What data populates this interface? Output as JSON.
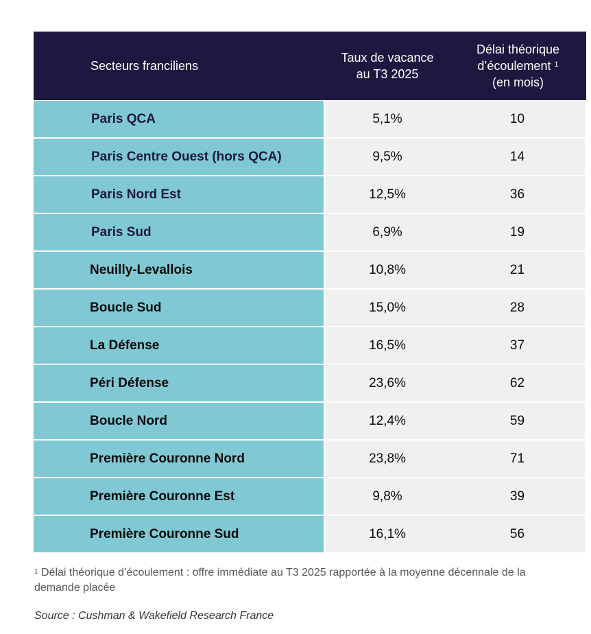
{
  "header": {
    "col1": "Secteurs franciliens",
    "col2_line1": "Taux de vacance",
    "col2_line2": "au T3 2025",
    "col3_line1": "Délai théorique",
    "col3_line2": "d’écoulement",
    "col3_sup": "1",
    "col3_line3": "(en mois)"
  },
  "rows": [
    {
      "sector": "Paris QCA",
      "vacancy": "5,1%",
      "delay": "10"
    },
    {
      "sector": "Paris Centre Ouest (hors QCA)",
      "vacancy": "9,5%",
      "delay": "14"
    },
    {
      "sector": "Paris Nord Est",
      "vacancy": "12,5%",
      "delay": "36"
    },
    {
      "sector": "Paris Sud",
      "vacancy": "6,9%",
      "delay": "19"
    },
    {
      "sector": "Neuilly-Levallois",
      "vacancy": "10,8%",
      "delay": "21"
    },
    {
      "sector": "Boucle Sud",
      "vacancy": "15,0%",
      "delay": "28"
    },
    {
      "sector": "La Défense",
      "vacancy": "16,5%",
      "delay": "37"
    },
    {
      "sector": "Péri Défense",
      "vacancy": "23,6%",
      "delay": "62"
    },
    {
      "sector": "Boucle Nord",
      "vacancy": "12,4%",
      "delay": "59"
    },
    {
      "sector": "Première Couronne Nord",
      "vacancy": "23,8%",
      "delay": "71"
    },
    {
      "sector": "Première Couronne Est",
      "vacancy": "9,8%",
      "delay": "39"
    },
    {
      "sector": "Première Couronne Sud",
      "vacancy": "16,1%",
      "delay": "56"
    }
  ],
  "footnote": {
    "sup": "1",
    "text": "Délai théorique d’écoulement : offre immédiate au T3 2025 rapportée à la moyenne décennale de la demande placée"
  },
  "source": "Source : Cushman & Wakefield Research France",
  "colors": {
    "header_bg": "#1e1840",
    "sector_bg": "#80c8d3",
    "value_bg": "#f0f0f0"
  }
}
